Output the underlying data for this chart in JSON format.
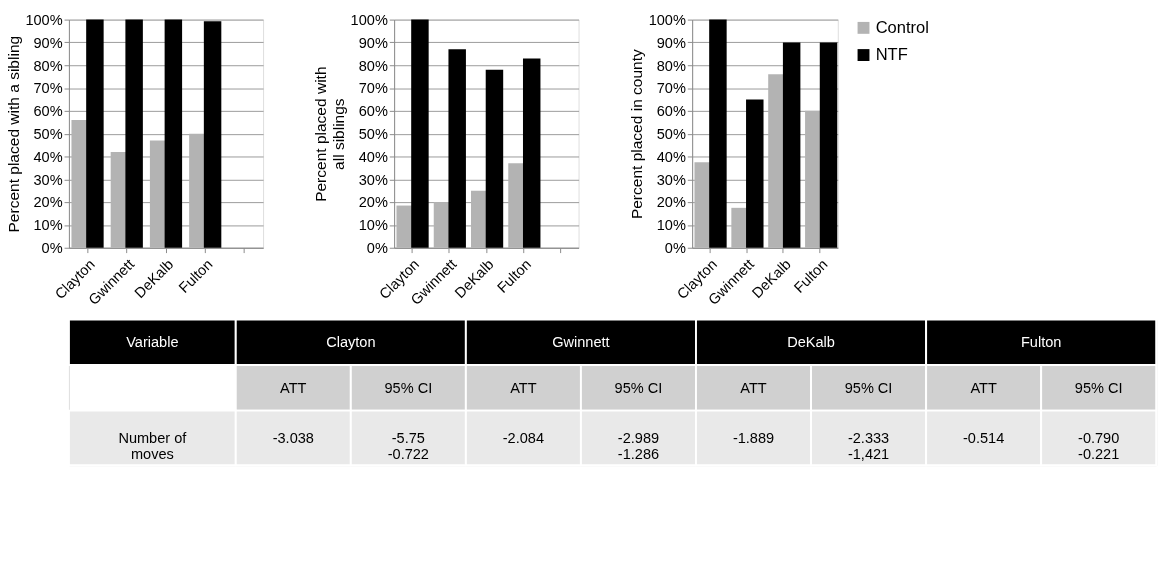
{
  "chart_data": [
    {
      "type": "bar",
      "ylabel": "Percent placed with a sibling",
      "categories": [
        "Clayton",
        "Gwinnett",
        "DeKalb",
        "Fulton",
        null
      ],
      "ylim": [
        0,
        100
      ],
      "yticks": [
        {
          "value": 0,
          "label": "0%"
        },
        {
          "value": 10,
          "label": "10%"
        },
        {
          "value": 20,
          "label": "20%"
        },
        {
          "value": 30,
          "label": "30%"
        },
        {
          "value": 40,
          "label": "40%"
        },
        {
          "value": 50,
          "label": "50%"
        },
        {
          "value": 60,
          "label": "60%"
        },
        {
          "value": 70,
          "label": "70%"
        },
        {
          "value": 80,
          "label": "80%"
        },
        {
          "value": 90,
          "label": "90%"
        },
        {
          "value": 100,
          "label": "100%"
        }
      ],
      "grid": "y",
      "legend": false,
      "series": [
        {
          "color": "#b3b3b3",
          "values": [
            56,
            42,
            47,
            50,
            null
          ]
        },
        {
          "color": "#000000",
          "values": [
            100,
            100,
            100,
            99.3,
            null
          ]
        }
      ]
    },
    {
      "type": "bar",
      "ylabel": "Percent placed with\nall siblings",
      "categories": [
        "Clayton",
        "Gwinnett",
        "DeKalb",
        "Fulton",
        null
      ],
      "ylim": [
        0,
        100
      ],
      "yticks": [
        {
          "value": 0,
          "label": "0%"
        },
        {
          "value": 10,
          "label": "10%"
        },
        {
          "value": 20,
          "label": "20%"
        },
        {
          "value": 30,
          "label": "30%"
        },
        {
          "value": 40,
          "label": "40%"
        },
        {
          "value": 50,
          "label": "50%"
        },
        {
          "value": 60,
          "label": "60%"
        },
        {
          "value": 70,
          "label": "70%"
        },
        {
          "value": 80,
          "label": "80%"
        },
        {
          "value": 90,
          "label": "90%"
        },
        {
          "value": 100,
          "label": "100%"
        }
      ],
      "grid": "y",
      "legend": false,
      "series": [
        {
          "color": "#b3b3b3",
          "values": [
            18.5,
            20,
            25,
            37,
            null
          ]
        },
        {
          "color": "#000000",
          "values": [
            100,
            87,
            78,
            83,
            null
          ]
        }
      ]
    },
    {
      "type": "bar",
      "ylabel": "Percent placed in county",
      "categories": [
        "Clayton",
        "Gwinnett",
        "DeKalb",
        "Fulton"
      ],
      "ylim": [
        0,
        100
      ],
      "yticks": [
        {
          "value": 0,
          "label": "0%"
        },
        {
          "value": 10,
          "label": "10%"
        },
        {
          "value": 20,
          "label": "20%"
        },
        {
          "value": 30,
          "label": "30%"
        },
        {
          "value": 40,
          "label": "40%"
        },
        {
          "value": 50,
          "label": "50%"
        },
        {
          "value": 60,
          "label": "60%"
        },
        {
          "value": 70,
          "label": "70%"
        },
        {
          "value": 80,
          "label": "80%"
        },
        {
          "value": 90,
          "label": "90%"
        },
        {
          "value": 100,
          "label": "100%"
        }
      ],
      "grid": "y",
      "legend": "right",
      "series": [
        {
          "name": "Control",
          "color": "#b3b3b3",
          "values": [
            37.5,
            17.5,
            76,
            60
          ]
        },
        {
          "name": "NTF",
          "color": "#000000",
          "values": [
            100,
            65,
            90,
            90
          ]
        }
      ]
    },
    {
      "type": "other",
      "annotations": [
        "Variable",
        "Clayton",
        "Gwinnett",
        "DeKalb",
        "Fulton",
        "ATT",
        "95% CI",
        "ATT",
        "95% CI",
        "ATT",
        "95% CI",
        "ATT",
        "95% CI",
        "Number of\nmoves",
        "-3.038",
        "-5.75\n-0.722",
        "-2.084",
        "-2.989\n-1.286",
        "-1.889",
        "-2.333\n-1,421",
        "-0.514",
        "-0.790\n-0.221"
      ]
    }
  ]
}
